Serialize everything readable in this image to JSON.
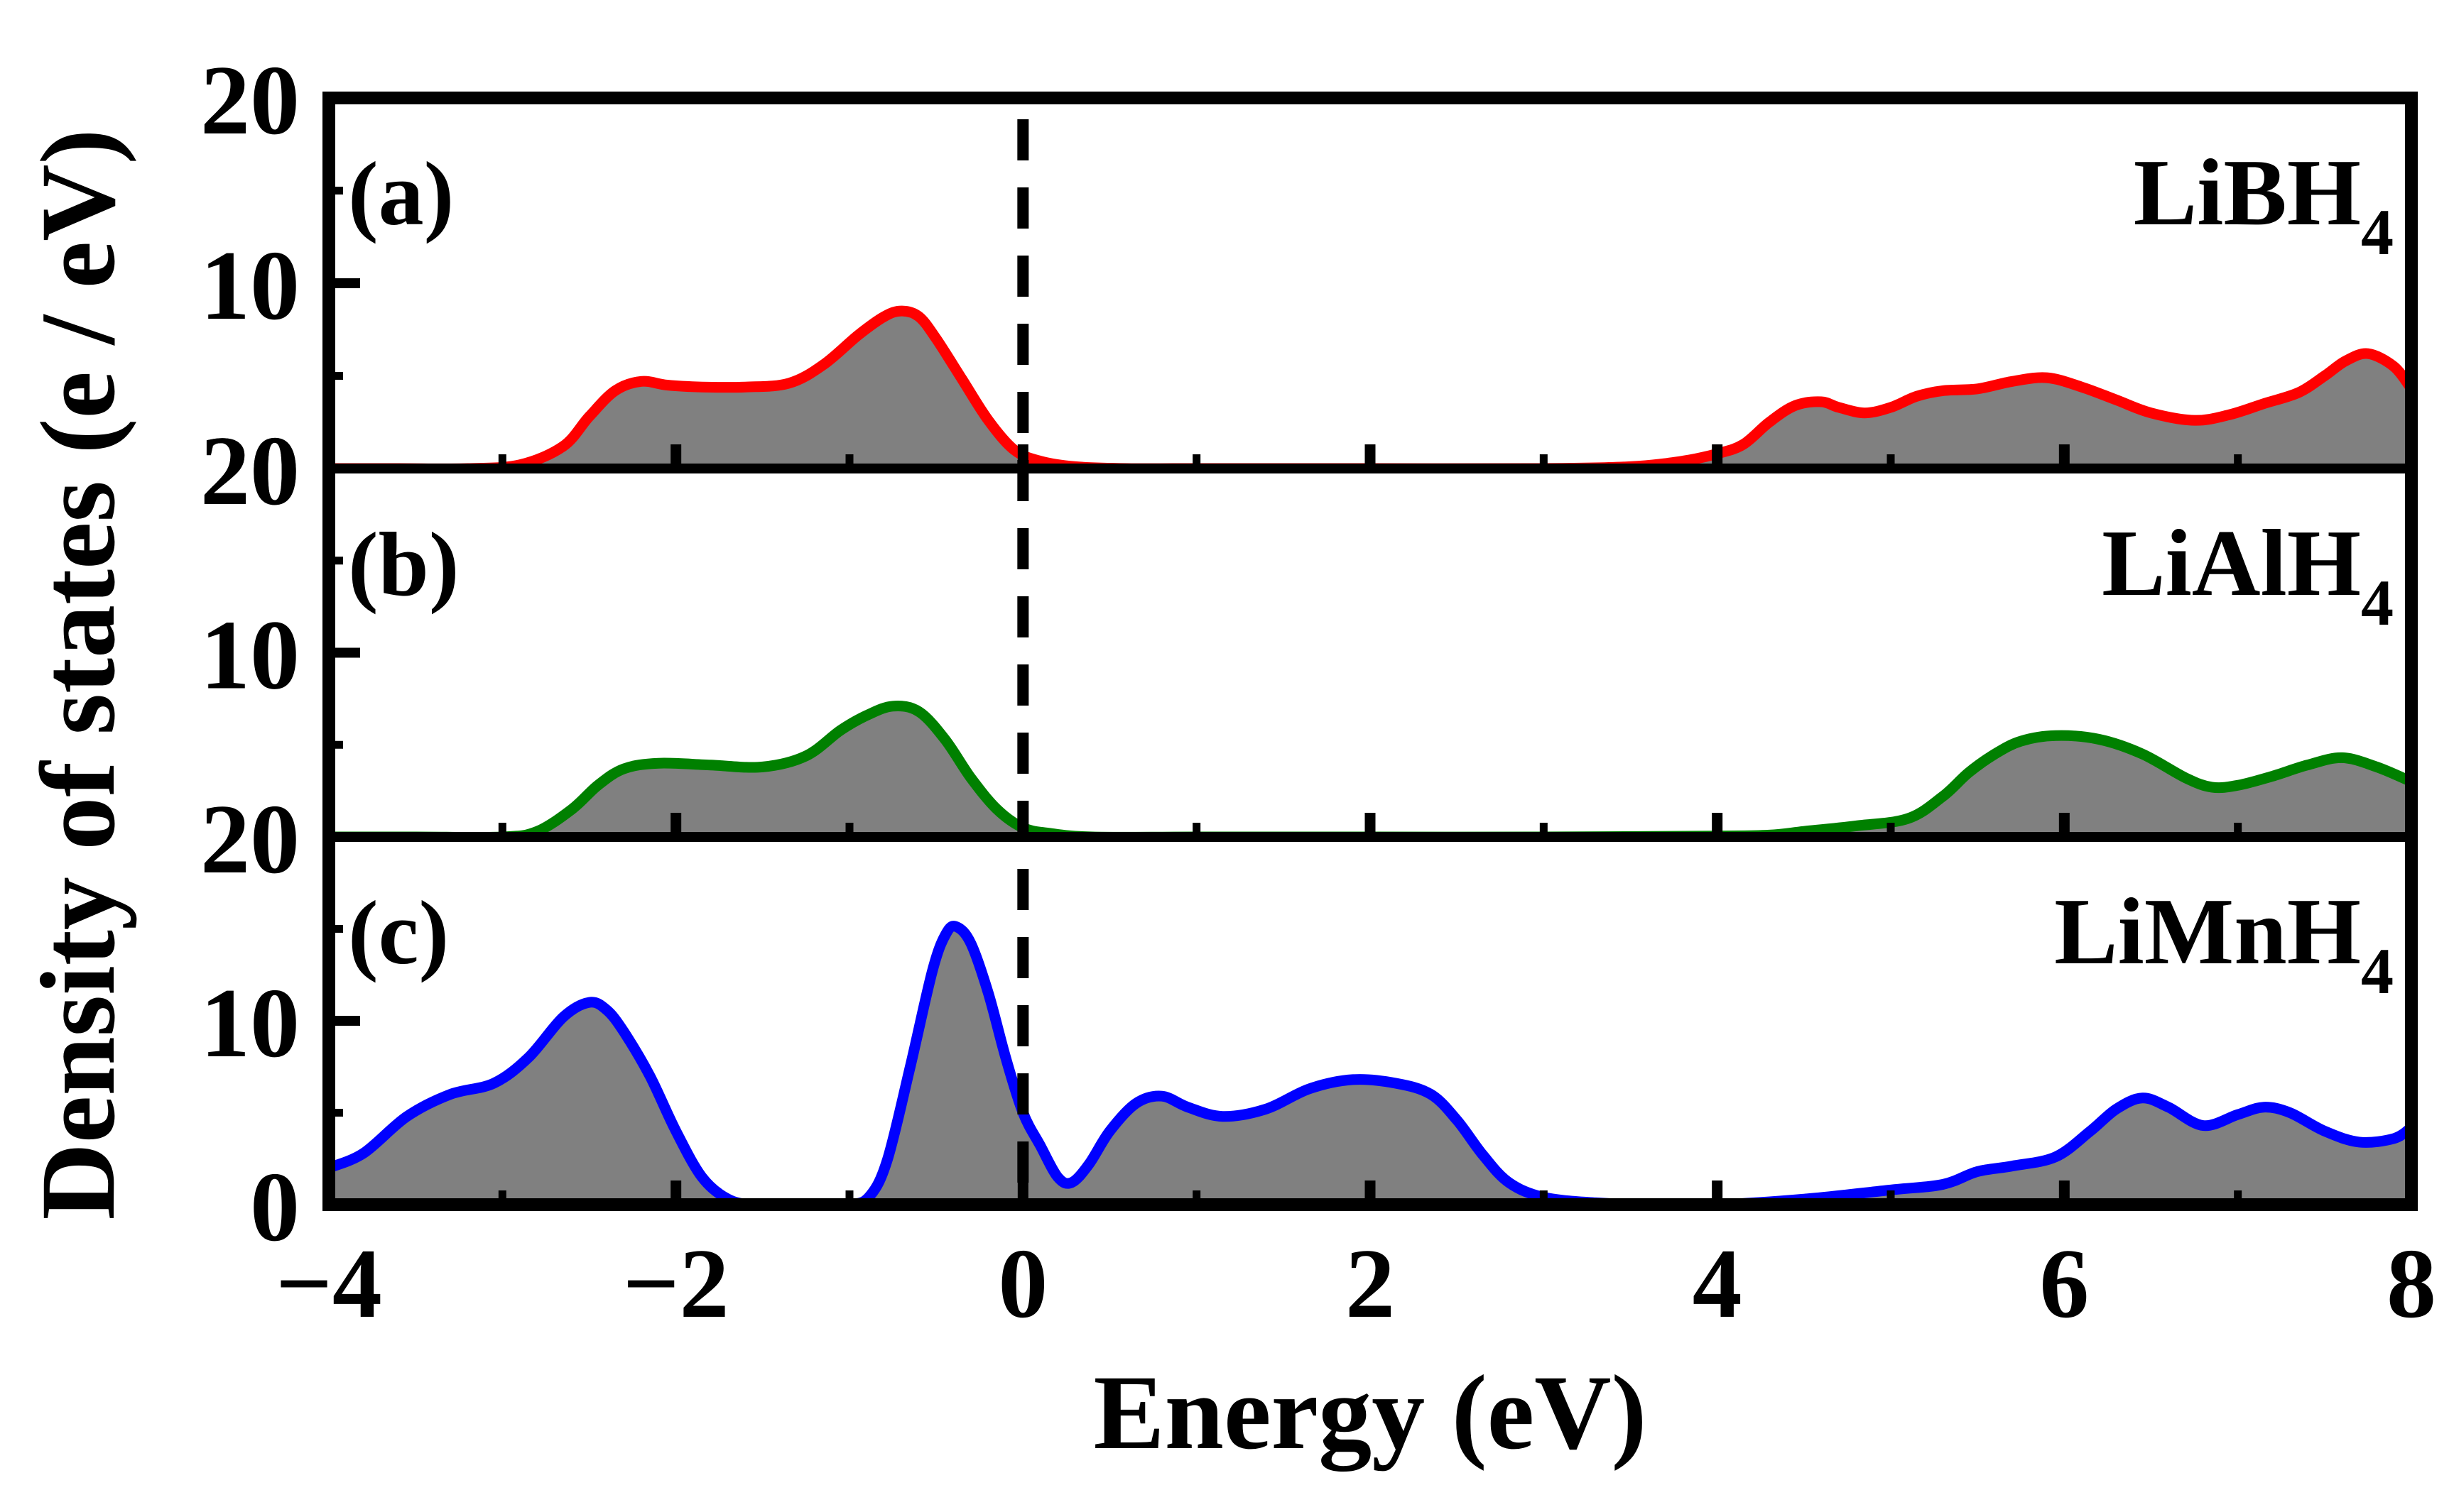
{
  "chart_data": {
    "type": "area",
    "xlabel": "Energy (eV)",
    "ylabel": "Density of states (e / eV)",
    "xlim": [
      -4,
      8
    ],
    "x_ticks": [
      "−4",
      "−2",
      "0",
      "2",
      "4",
      "6",
      "8"
    ],
    "x_tick_values": [
      -4,
      -2,
      0,
      2,
      4,
      6,
      8
    ],
    "fermi_level": 0,
    "fill_color": "#808080",
    "grid": false,
    "panels": [
      {
        "letter": "(a)",
        "compound": "LiBH",
        "subscript": "4",
        "line_color": "#ff0000",
        "ylim": [
          0,
          20
        ],
        "y_tick_labels": [
          "20",
          "10",
          "20"
        ],
        "y_tick_values": [
          20,
          10,
          0
        ],
        "x": [
          -4,
          -3.6,
          -3.2,
          -2.9,
          -2.65,
          -2.5,
          -2.35,
          -2.2,
          -2.05,
          -1.85,
          -1.6,
          -1.35,
          -1.15,
          -0.95,
          -0.8,
          -0.7,
          -0.6,
          -0.5,
          -0.35,
          -0.2,
          -0.05,
          0.1,
          0.3,
          0.6,
          1,
          2,
          3,
          3.5,
          3.8,
          4.0,
          4.15,
          4.3,
          4.45,
          4.6,
          4.7,
          4.85,
          5.0,
          5.15,
          5.3,
          5.5,
          5.7,
          5.9,
          6.1,
          6.3,
          6.5,
          6.75,
          6.95,
          7.15,
          7.35,
          7.5,
          7.62,
          7.75,
          7.9,
          8.0
        ],
        "y": [
          0,
          0,
          0,
          0.2,
          1.2,
          2.8,
          4.2,
          4.7,
          4.5,
          4.4,
          4.4,
          4.6,
          5.6,
          7.2,
          8.2,
          8.5,
          8.2,
          7.0,
          4.8,
          2.6,
          1.0,
          0.4,
          0.1,
          0,
          0,
          0,
          0,
          0.1,
          0.4,
          0.8,
          1.3,
          2.5,
          3.4,
          3.6,
          3.3,
          3.0,
          3.3,
          3.9,
          4.2,
          4.3,
          4.7,
          4.9,
          4.4,
          3.7,
          3.0,
          2.6,
          2.9,
          3.5,
          4.1,
          5.0,
          5.8,
          6.2,
          5.5,
          4.3
        ]
      },
      {
        "letter": "(b)",
        "compound": "LiAlH",
        "subscript": "4",
        "line_color": "#008000",
        "ylim": [
          0,
          20
        ],
        "y_tick_labels": [
          "20",
          "10",
          "20"
        ],
        "y_tick_values": [
          20,
          10,
          0
        ],
        "x": [
          -4,
          -3.5,
          -3.0,
          -2.8,
          -2.6,
          -2.45,
          -2.3,
          -2.1,
          -1.8,
          -1.5,
          -1.25,
          -1.05,
          -0.9,
          -0.75,
          -0.6,
          -0.45,
          -0.3,
          -0.15,
          0,
          0.15,
          0.4,
          1,
          2,
          3,
          4.0,
          4.3,
          4.5,
          4.8,
          5.1,
          5.3,
          5.45,
          5.6,
          5.75,
          5.95,
          6.2,
          6.45,
          6.7,
          6.85,
          7.0,
          7.2,
          7.4,
          7.6,
          7.8,
          8.0
        ],
        "y": [
          0,
          0,
          0,
          0.3,
          1.5,
          2.8,
          3.7,
          4.0,
          3.9,
          3.8,
          4.4,
          5.8,
          6.6,
          7.1,
          6.8,
          5.3,
          3.2,
          1.5,
          0.5,
          0.2,
          0,
          0,
          0,
          0,
          0.05,
          0.1,
          0.3,
          0.6,
          1.0,
          2.2,
          3.5,
          4.5,
          5.2,
          5.5,
          5.3,
          4.5,
          3.2,
          2.7,
          2.8,
          3.3,
          3.9,
          4.3,
          3.8,
          3.0
        ]
      },
      {
        "letter": "(c)",
        "compound": "LiMnH",
        "subscript": "4",
        "line_color": "#0000ff",
        "ylim": [
          0,
          20
        ],
        "y_tick_labels": [
          "",
          "10",
          "0"
        ],
        "y_tick_values": [
          20,
          10,
          0
        ],
        "x": [
          -4,
          -3.8,
          -3.55,
          -3.3,
          -3.05,
          -2.85,
          -2.65,
          -2.5,
          -2.4,
          -2.3,
          -2.15,
          -2.0,
          -1.85,
          -1.7,
          -1.55,
          -1.3,
          -1.0,
          -0.88,
          -0.78,
          -0.65,
          -0.52,
          -0.44,
          -0.38,
          -0.3,
          -0.2,
          -0.1,
          0,
          0.1,
          0.2,
          0.28,
          0.38,
          0.5,
          0.65,
          0.8,
          0.95,
          1.15,
          1.4,
          1.65,
          1.9,
          2.15,
          2.35,
          2.5,
          2.65,
          2.8,
          3.0,
          3.3,
          3.6,
          4.0,
          4.5,
          5.0,
          5.3,
          5.5,
          5.7,
          5.95,
          6.15,
          6.3,
          6.45,
          6.6,
          6.8,
          7.0,
          7.15,
          7.3,
          7.5,
          7.7,
          7.9,
          8.0
        ],
        "y": [
          2.0,
          2.8,
          4.8,
          6.0,
          6.6,
          8.0,
          10.2,
          11.0,
          10.6,
          9.4,
          7.0,
          4.0,
          1.5,
          0.3,
          0,
          0,
          0,
          0.5,
          2.5,
          7.5,
          12.8,
          14.8,
          15.1,
          14.2,
          11.5,
          8.0,
          5.0,
          3.2,
          1.5,
          1.2,
          2.2,
          4.0,
          5.5,
          5.9,
          5.3,
          4.8,
          5.2,
          6.3,
          6.8,
          6.6,
          6.0,
          4.6,
          2.7,
          1.2,
          0.4,
          0.1,
          0,
          0,
          0.3,
          0.8,
          1.1,
          1.8,
          2.1,
          2.6,
          4.0,
          5.2,
          5.8,
          5.3,
          4.3,
          4.9,
          5.3,
          5.0,
          4.0,
          3.4,
          3.6,
          4.2
        ]
      }
    ]
  }
}
